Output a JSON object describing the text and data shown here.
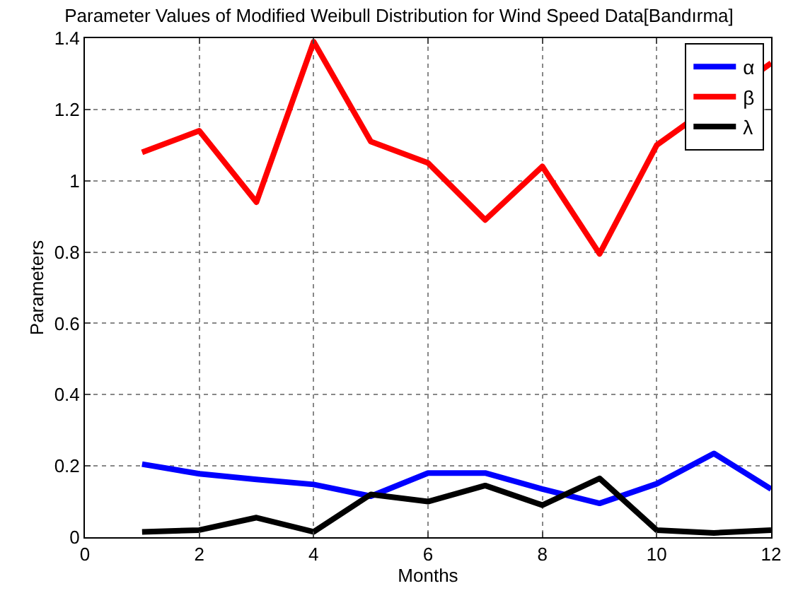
{
  "chart_data": {
    "type": "line",
    "title": "Parameter Values of Modified Weibull Distribution for Wind Speed Data[Bandırma]",
    "xlabel": "Months",
    "ylabel": "Parameters",
    "x": [
      1,
      2,
      3,
      4,
      5,
      6,
      7,
      8,
      9,
      10,
      11,
      12
    ],
    "series": [
      {
        "name": "α",
        "color": "#0000ff",
        "values": [
          0.205,
          0.178,
          0.162,
          0.148,
          0.115,
          0.18,
          0.18,
          0.135,
          0.095,
          0.15,
          0.235,
          0.135
        ]
      },
      {
        "name": "β",
        "color": "#ff0000",
        "values": [
          1.08,
          1.14,
          0.94,
          1.39,
          1.11,
          1.05,
          0.89,
          1.04,
          0.795,
          1.1,
          null,
          1.33
        ]
      },
      {
        "name": "λ",
        "color": "#000000",
        "values": [
          0.015,
          0.02,
          0.055,
          0.015,
          0.12,
          0.1,
          0.145,
          0.09,
          0.165,
          0.02,
          0.012,
          0.02
        ]
      }
    ],
    "xlim": [
      0,
      12
    ],
    "xticks": [
      0,
      2,
      4,
      6,
      8,
      10,
      12
    ],
    "ylim": [
      0,
      1.4
    ],
    "yticks": [
      0,
      0.2,
      0.4,
      0.6,
      0.8,
      1,
      1.2,
      1.4
    ],
    "grid": true,
    "legend": "top right",
    "marker": "none",
    "line_style": "solid"
  }
}
